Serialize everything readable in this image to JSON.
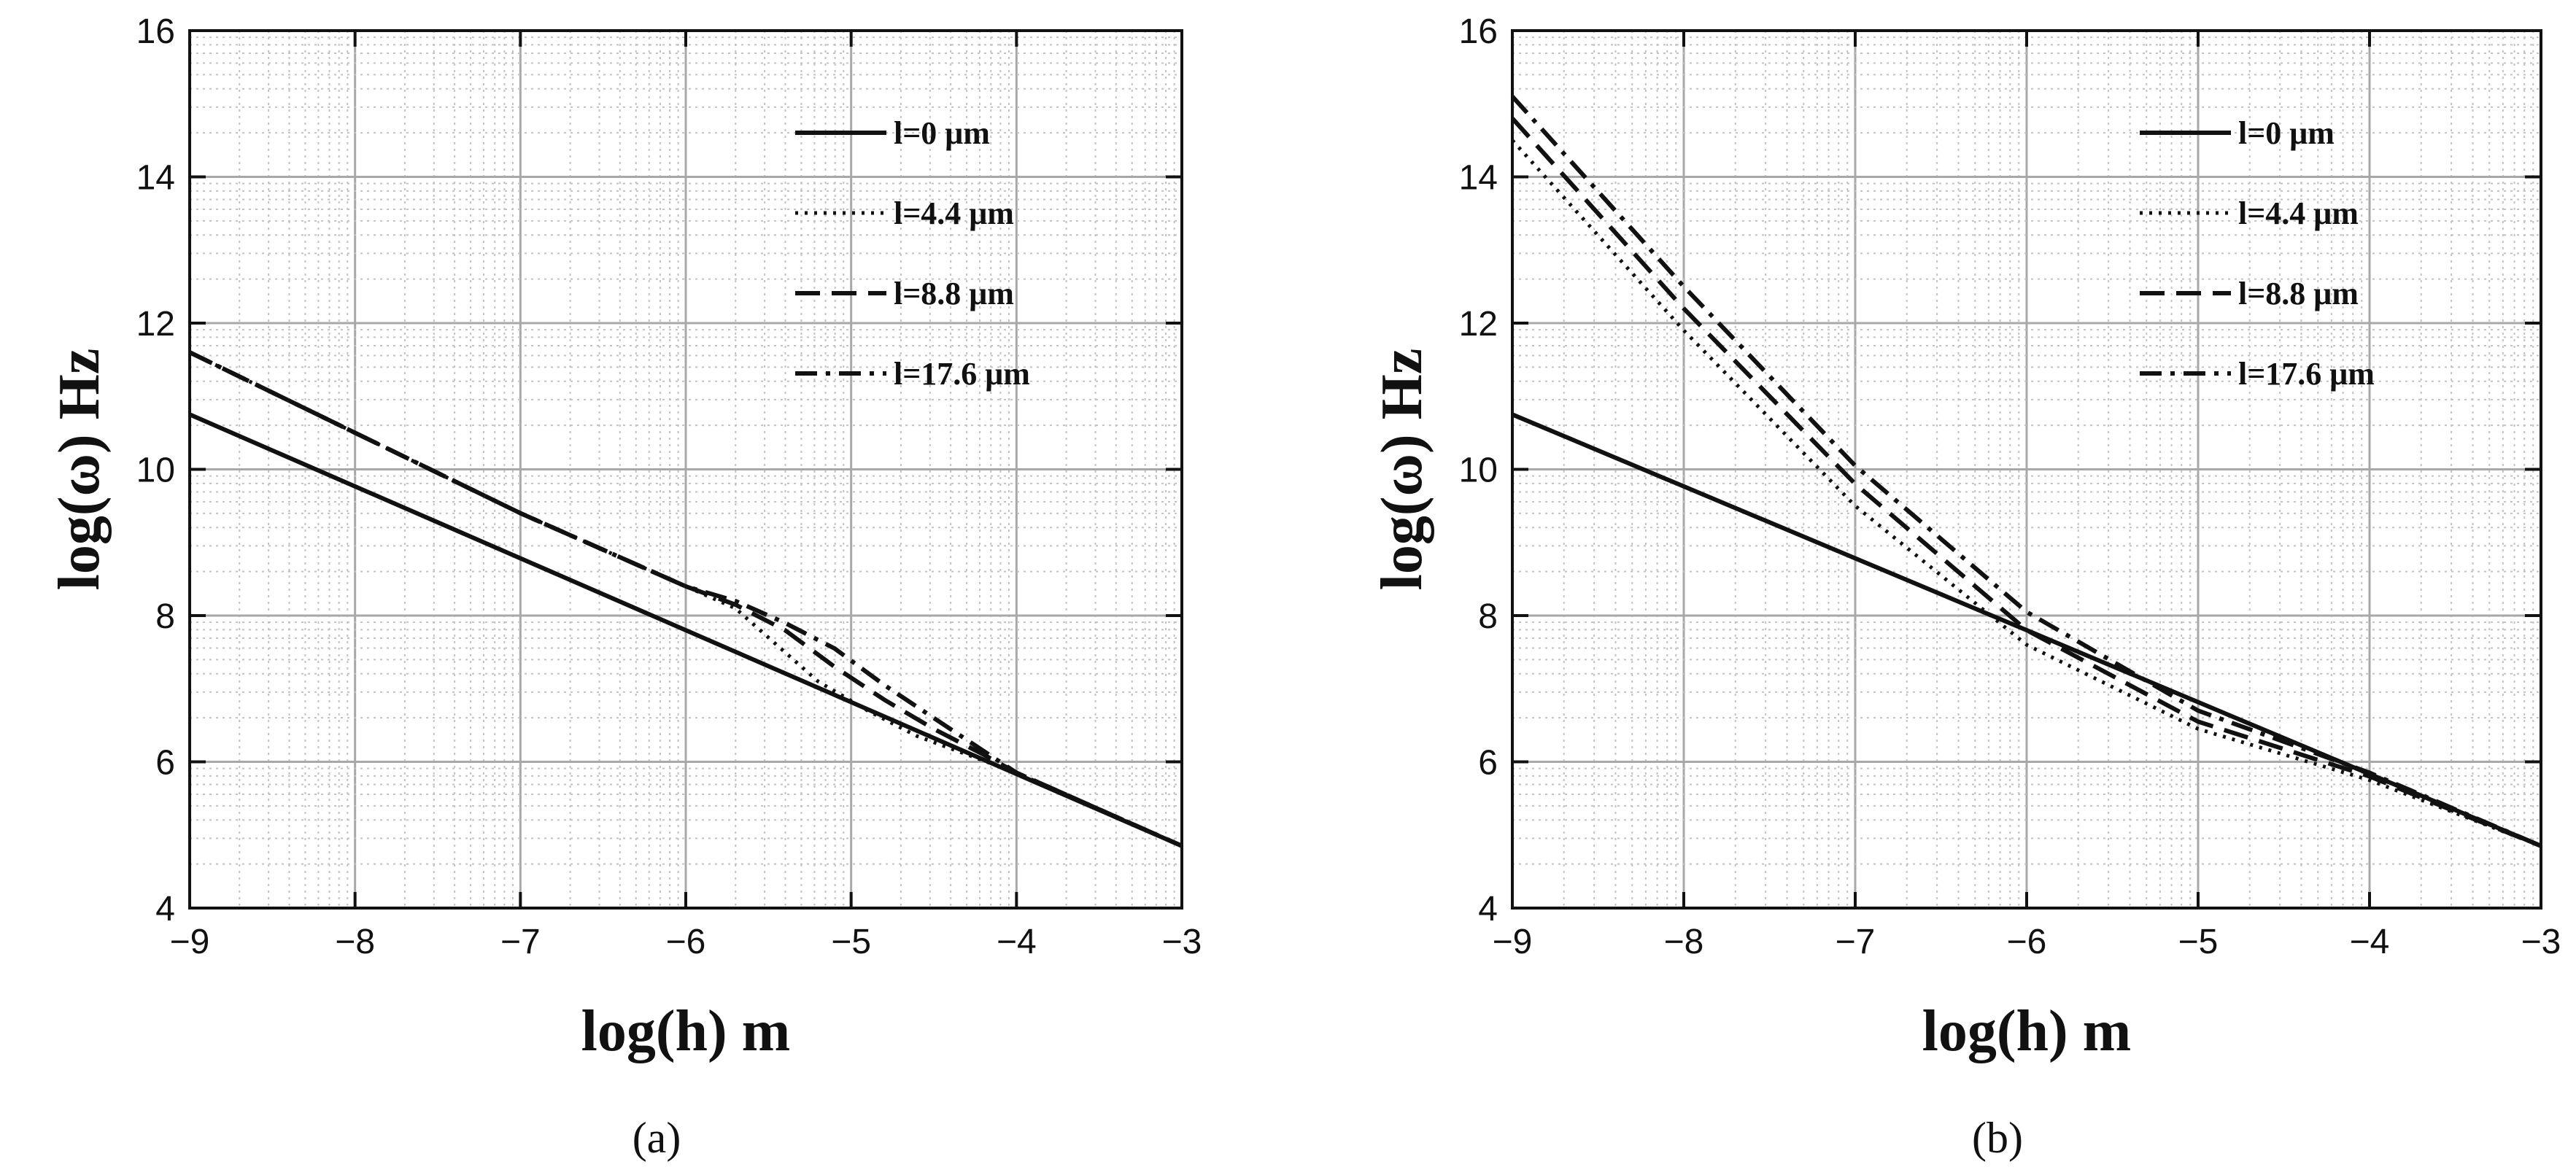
{
  "chart_data": [
    {
      "type": "line",
      "panel_label": "(a)",
      "xlabel": "log(h)  m",
      "ylabel": "log(ω)  Hz",
      "xlim": [
        -9,
        -3
      ],
      "ylim": [
        4,
        16
      ],
      "xticks": [
        "−9",
        "−8",
        "−7",
        "−6",
        "−5",
        "−4",
        "−3"
      ],
      "yticks": [
        "4",
        "6",
        "8",
        "10",
        "12",
        "14",
        "16"
      ],
      "grid": true,
      "legend_position": "top-right",
      "series": [
        {
          "name": "l=0 μm",
          "style": "solid",
          "x": [
            -9,
            -3
          ],
          "y": [
            10.75,
            4.85
          ]
        },
        {
          "name": "l=4.4 μm",
          "style": "dotted",
          "x": [
            -9,
            -8,
            -7,
            -6,
            -5.7,
            -5.5,
            -5.2,
            -4.9,
            -4.6,
            -4.3,
            -4.0,
            -3.5,
            -3.0
          ],
          "y": [
            11.6,
            10.5,
            9.4,
            8.4,
            8.1,
            7.7,
            7.1,
            6.7,
            6.35,
            6.1,
            5.85,
            5.35,
            4.85
          ]
        },
        {
          "name": "l=8.8 μm",
          "style": "dashed",
          "x": [
            -9,
            -8,
            -7,
            -6,
            -5.7,
            -5.4,
            -5.1,
            -4.8,
            -4.5,
            -4.2,
            -4.0,
            -3.5,
            -3.0
          ],
          "y": [
            11.6,
            10.5,
            9.4,
            8.4,
            8.15,
            7.8,
            7.3,
            6.85,
            6.45,
            6.1,
            5.85,
            5.35,
            4.85
          ]
        },
        {
          "name": "l=17.6 μm",
          "style": "dashdot",
          "x": [
            -9,
            -8,
            -7,
            -6,
            -5.7,
            -5.4,
            -5.1,
            -4.8,
            -4.5,
            -4.2,
            -4.0,
            -3.5,
            -3.0
          ],
          "y": [
            11.6,
            10.5,
            9.4,
            8.4,
            8.2,
            7.9,
            7.55,
            7.05,
            6.6,
            6.15,
            5.85,
            5.35,
            4.85
          ]
        }
      ]
    },
    {
      "type": "line",
      "panel_label": "(b)",
      "xlabel": "log(h)  m",
      "ylabel": "log(ω)  Hz",
      "xlim": [
        -9,
        -3
      ],
      "ylim": [
        4,
        16
      ],
      "xticks": [
        "−9",
        "−8",
        "−7",
        "−6",
        "−5",
        "−4",
        "−3"
      ],
      "yticks": [
        "4",
        "6",
        "8",
        "10",
        "12",
        "14",
        "16"
      ],
      "grid": true,
      "legend_position": "top-right",
      "series": [
        {
          "name": "l=0 μm",
          "style": "solid",
          "x": [
            -9,
            -3
          ],
          "y": [
            10.75,
            4.85
          ]
        },
        {
          "name": "l=4.4 μm",
          "style": "dotted",
          "x": [
            -9,
            -8,
            -7,
            -6,
            -5,
            -4,
            -3.5,
            -3
          ],
          "y": [
            14.5,
            11.9,
            9.5,
            7.6,
            6.45,
            5.75,
            5.3,
            4.85
          ]
        },
        {
          "name": "l=8.8 μm",
          "style": "dashed",
          "x": [
            -9,
            -8,
            -7,
            -6,
            -5,
            -4,
            -3.5,
            -3
          ],
          "y": [
            14.8,
            12.2,
            9.8,
            7.8,
            6.55,
            5.8,
            5.32,
            4.85
          ]
        },
        {
          "name": "l=17.6 μm",
          "style": "dashdot",
          "x": [
            -9,
            -8,
            -7,
            -6,
            -5,
            -4,
            -3.5,
            -3
          ],
          "y": [
            15.1,
            12.5,
            10.05,
            8.05,
            6.7,
            5.85,
            5.35,
            4.85
          ]
        }
      ]
    }
  ]
}
